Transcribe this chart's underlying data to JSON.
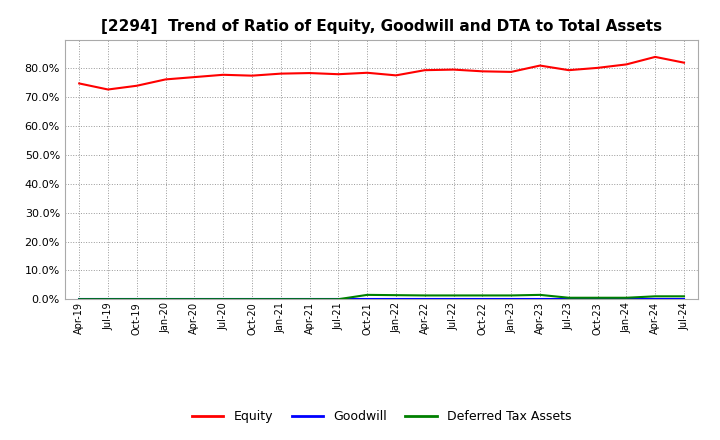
{
  "title": "[2294]  Trend of Ratio of Equity, Goodwill and DTA to Total Assets",
  "title_fontsize": 11,
  "x_labels": [
    "Apr-19",
    "Jul-19",
    "Oct-19",
    "Jan-20",
    "Apr-20",
    "Jul-20",
    "Oct-20",
    "Jan-21",
    "Apr-21",
    "Jul-21",
    "Oct-21",
    "Jan-22",
    "Apr-22",
    "Jul-22",
    "Oct-22",
    "Jan-23",
    "Apr-23",
    "Jul-23",
    "Oct-23",
    "Jan-24",
    "Apr-24",
    "Jul-24"
  ],
  "equity": [
    0.748,
    0.727,
    0.74,
    0.762,
    0.77,
    0.778,
    0.775,
    0.782,
    0.784,
    0.78,
    0.785,
    0.776,
    0.794,
    0.796,
    0.79,
    0.788,
    0.81,
    0.794,
    0.802,
    0.814,
    0.84,
    0.82
  ],
  "goodwill": [
    0.0,
    0.0,
    0.0,
    0.0,
    0.0,
    0.0,
    0.0,
    0.0,
    0.0,
    0.0,
    0.0,
    0.0,
    0.0,
    0.0,
    0.0,
    0.0,
    0.0,
    0.0,
    0.0,
    0.0,
    0.0,
    0.0
  ],
  "dta": [
    0.0,
    0.0,
    0.0,
    0.0,
    0.0,
    0.0,
    0.0,
    0.0,
    0.0,
    0.0,
    0.015,
    0.014,
    0.013,
    0.013,
    0.013,
    0.013,
    0.015,
    0.005,
    0.005,
    0.005,
    0.01,
    0.01
  ],
  "equity_color": "#ff0000",
  "goodwill_color": "#0000ff",
  "dta_color": "#008000",
  "ylim": [
    0.0,
    0.9
  ],
  "yticks": [
    0.0,
    0.1,
    0.2,
    0.3,
    0.4,
    0.5,
    0.6,
    0.7,
    0.8
  ],
  "background_color": "#ffffff",
  "plot_bg_color": "#ffffff",
  "grid_color": "#999999",
  "legend_labels": [
    "Equity",
    "Goodwill",
    "Deferred Tax Assets"
  ]
}
